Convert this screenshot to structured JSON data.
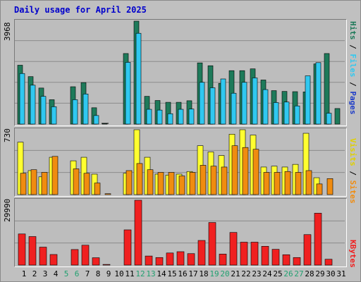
{
  "title": "Daily usage for April 2025",
  "colors": {
    "hits": "#1e7a5a",
    "files": "#30c8f0",
    "pages": "#1e3cc8",
    "visits": "#ffff30",
    "sites": "#f08c10",
    "kbytes": "#f02020",
    "weekday_label": "#000000",
    "weekend_label": "#20a070"
  },
  "legends": {
    "top": {
      "pages": "Pages",
      "files": "Files",
      "hits": "Hits",
      "sep": " / "
    },
    "middle": {
      "sites": "Sites",
      "visits": "Visits",
      "sep": " / "
    },
    "bottom": {
      "kbytes": "KBytes"
    }
  },
  "axis_max_labels": {
    "hits": "3968",
    "visits": "730",
    "kbytes": "29990"
  },
  "chart_data": [
    {
      "type": "bar",
      "title": "Daily usage for April 2025",
      "ylim": [
        0,
        3968
      ],
      "categories": [
        "1",
        "2",
        "3",
        "4",
        "5",
        "6",
        "7",
        "8",
        "9",
        "10",
        "11",
        "12",
        "13",
        "14",
        "15",
        "16",
        "17",
        "18",
        "19",
        "20",
        "21",
        "22",
        "23",
        "24",
        "25",
        "26",
        "27",
        "28",
        "29",
        "30",
        "31"
      ],
      "series": [
        {
          "name": "Hits",
          "values": [
            2270,
            1830,
            1390,
            940,
            0,
            1440,
            1600,
            630,
            30,
            0,
            2720,
            3968,
            1070,
            910,
            840,
            840,
            900,
            2360,
            2250,
            1570,
            2060,
            2060,
            2130,
            1700,
            1290,
            1260,
            1250,
            1240,
            2320,
            2720,
            600
          ]
        },
        {
          "name": "Files",
          "values": [
            1950,
            1500,
            1070,
            670,
            0,
            940,
            1160,
            330,
            0,
            0,
            2380,
            3500,
            570,
            540,
            400,
            570,
            580,
            1610,
            1400,
            1740,
            1190,
            1610,
            1780,
            1330,
            830,
            850,
            700,
            1860,
            2370,
            420,
            0
          ]
        },
        {
          "name": "Pages",
          "values": [
            0,
            0,
            0,
            0,
            0,
            0,
            0,
            0,
            0,
            0,
            0,
            0,
            0,
            0,
            0,
            0,
            0,
            0,
            0,
            0,
            0,
            0,
            0,
            0,
            0,
            0,
            0,
            0,
            0,
            0,
            0
          ]
        }
      ]
    },
    {
      "type": "bar",
      "ylim": [
        0,
        730
      ],
      "categories": [
        "1",
        "2",
        "3",
        "4",
        "5",
        "6",
        "7",
        "8",
        "9",
        "10",
        "11",
        "12",
        "13",
        "14",
        "15",
        "16",
        "17",
        "18",
        "19",
        "20",
        "21",
        "22",
        "23",
        "24",
        "25",
        "26",
        "27",
        "28",
        "29",
        "30",
        "31"
      ],
      "series": [
        {
          "name": "Visits",
          "values": [
            590,
            270,
            200,
            420,
            0,
            380,
            420,
            230,
            0,
            0,
            240,
            730,
            420,
            230,
            220,
            230,
            260,
            550,
            480,
            440,
            680,
            730,
            670,
            310,
            320,
            310,
            340,
            690,
            190,
            0,
            0
          ]
        },
        {
          "name": "Sites",
          "values": [
            240,
            280,
            250,
            430,
            0,
            290,
            240,
            130,
            10,
            0,
            270,
            350,
            280,
            250,
            250,
            210,
            250,
            330,
            320,
            310,
            550,
            530,
            510,
            250,
            250,
            260,
            250,
            270,
            120,
            180,
            0
          ]
        }
      ]
    },
    {
      "type": "bar",
      "ylim": [
        0,
        29990
      ],
      "categories": [
        "1",
        "2",
        "3",
        "4",
        "5",
        "6",
        "7",
        "8",
        "9",
        "10",
        "11",
        "12",
        "13",
        "14",
        "15",
        "16",
        "17",
        "18",
        "19",
        "20",
        "21",
        "22",
        "23",
        "24",
        "25",
        "26",
        "27",
        "28",
        "29",
        "30",
        "31"
      ],
      "series": [
        {
          "name": "KBytes",
          "values": [
            14400,
            13200,
            8300,
            4900,
            0,
            7200,
            9200,
            3400,
            300,
            0,
            16300,
            29990,
            4200,
            3500,
            5600,
            6200,
            5300,
            11400,
            19700,
            5100,
            15100,
            10600,
            10600,
            8700,
            7300,
            4800,
            3500,
            14100,
            24000,
            2700,
            0
          ]
        }
      ]
    }
  ],
  "day_labels": [
    "1",
    "2",
    "3",
    "4",
    "5",
    "6",
    "7",
    "8",
    "9",
    "10",
    "11",
    "12",
    "13",
    "14",
    "15",
    "16",
    "17",
    "18",
    "19",
    "20",
    "21",
    "22",
    "23",
    "24",
    "25",
    "26",
    "27",
    "28",
    "29",
    "30",
    "31"
  ],
  "weekend_days": [
    "5",
    "6",
    "12",
    "13",
    "19",
    "20",
    "26",
    "27"
  ]
}
